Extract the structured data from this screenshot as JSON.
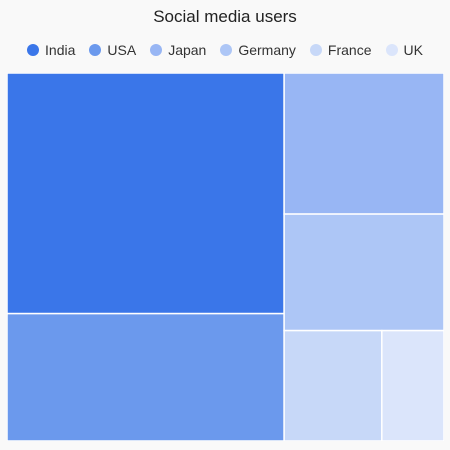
{
  "chart_data": {
    "type": "treemap",
    "title": "Social media users",
    "legend_position": "top-center",
    "categories": [
      "India",
      "USA",
      "Japan",
      "Germany",
      "France",
      "UK"
    ],
    "values": [
      34.0,
      18.0,
      11.5,
      9.5,
      5.5,
      3.5
    ],
    "colors": [
      "#3a76e9",
      "#6b99ed",
      "#98b6f4",
      "#adc6f6",
      "#c7d8f8",
      "#dbe5fb"
    ]
  }
}
